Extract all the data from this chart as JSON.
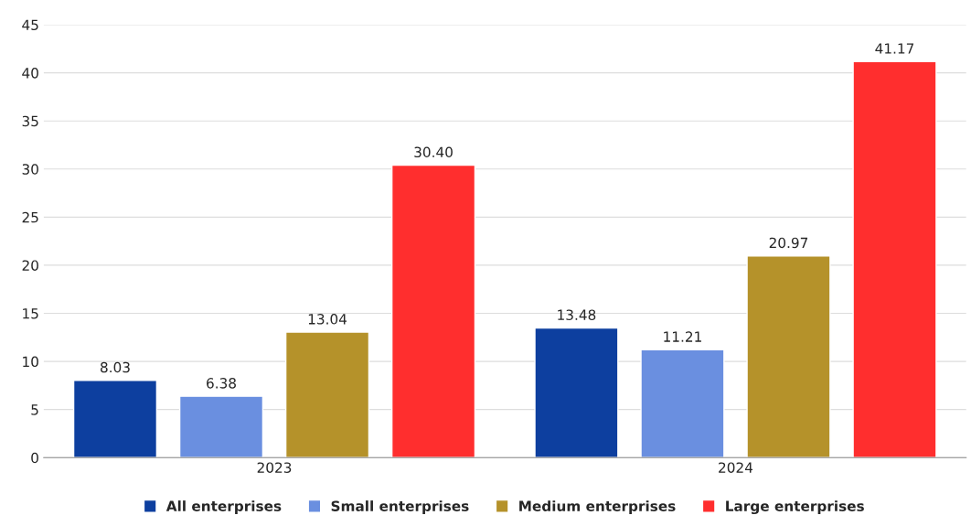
{
  "chart_data": {
    "type": "bar",
    "categories": [
      "2023",
      "2024"
    ],
    "series": [
      {
        "name": "All enterprises",
        "color": "#0d3f9f",
        "values": [
          8.03,
          13.48
        ],
        "value_labels": [
          "8.03",
          "13.48"
        ]
      },
      {
        "name": "Small enterprises",
        "color": "#6a8fe0",
        "values": [
          6.38,
          11.21
        ],
        "value_labels": [
          "6.38",
          "11.21"
        ]
      },
      {
        "name": "Medium enterprises",
        "color": "#b5922a",
        "values": [
          13.04,
          20.97
        ],
        "value_labels": [
          "13.04",
          "20.97"
        ]
      },
      {
        "name": "Large enterprises",
        "color": "#ff2e2e",
        "values": [
          30.4,
          41.17
        ],
        "value_labels": [
          "30.40",
          "41.17"
        ]
      }
    ],
    "ylim": [
      0,
      45
    ],
    "yticks": [
      0,
      5,
      10,
      15,
      20,
      25,
      30,
      35,
      40,
      45
    ],
    "grid": "y",
    "legend": "bottom"
  }
}
